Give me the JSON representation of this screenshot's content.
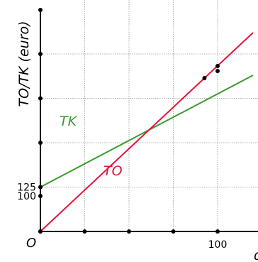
{
  "chart_data": {
    "type": "line",
    "ylabel": "TO/TK (euro)",
    "xlabel": "q",
    "origin_label": "O",
    "xlim": [
      0,
      120
    ],
    "ylim": [
      0,
      530
    ],
    "grid": true,
    "x_ticks": [
      0,
      25,
      50,
      75,
      100
    ],
    "y_ticks": [
      0,
      100,
      125,
      250,
      375,
      500
    ],
    "x_tick_labels": [
      {
        "value": 100,
        "text": "100"
      }
    ],
    "y_tick_labels": [
      {
        "value": 100,
        "text": "100"
      },
      {
        "value": 125,
        "text": "125"
      }
    ],
    "series": [
      {
        "name": "TK",
        "color": "#3a9a2e",
        "x": [
          0,
          120
        ],
        "y": [
          125,
          440
        ]
      },
      {
        "name": "TO",
        "color": "#e3143c",
        "x": [
          0,
          120
        ],
        "y": [
          0,
          560
        ]
      }
    ],
    "points": [
      {
        "x": 92.6,
        "y": 432
      },
      {
        "x": 100,
        "y": 466
      },
      {
        "x": 100,
        "y": 452
      }
    ]
  }
}
